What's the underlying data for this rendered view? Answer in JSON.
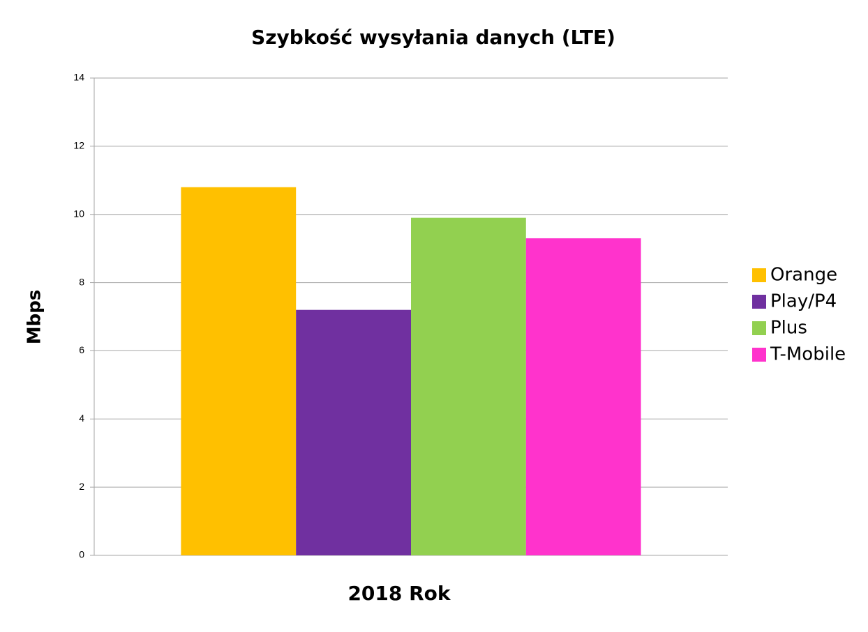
{
  "chart_data": {
    "type": "bar",
    "title": "Szybkość wysyłania danych (LTE)",
    "y_label": "Mbps",
    "categories": [
      "2018 Rok"
    ],
    "series": [
      {
        "name": "Orange",
        "color": "#ffc000",
        "values": [
          10.8
        ]
      },
      {
        "name": "Play/P4",
        "color": "#7030a0",
        "values": [
          7.2
        ]
      },
      {
        "name": "Plus",
        "color": "#92d050",
        "values": [
          9.9
        ]
      },
      {
        "name": "T-Mobile",
        "color": "#ff33cc",
        "values": [
          9.3
        ]
      }
    ],
    "ylim": [
      0,
      14
    ],
    "yticks": [
      0,
      2,
      4,
      6,
      8,
      10,
      12,
      14
    ],
    "grid": true,
    "legend": "right"
  }
}
